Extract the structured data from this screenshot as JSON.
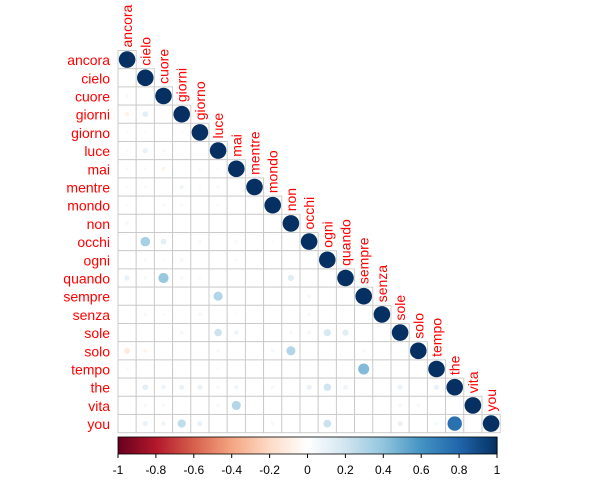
{
  "chart_data": {
    "type": "heatmap",
    "subtype": "correlation-lower-triangle-circles",
    "variables": [
      "ancora",
      "cielo",
      "cuore",
      "giorni",
      "giorno",
      "luce",
      "mai",
      "mentre",
      "mondo",
      "non",
      "occhi",
      "ogni",
      "quando",
      "sempre",
      "senza",
      "sole",
      "solo",
      "tempo",
      "the",
      "vita",
      "you"
    ],
    "label_color": "#ff0000",
    "diagonal_value": 1,
    "offdiagonal": [
      {
        "row": "cuore",
        "col": "ancora",
        "value": 0.05
      },
      {
        "row": "giorni",
        "col": "ancora",
        "value": -0.07
      },
      {
        "row": "giorni",
        "col": "cielo",
        "value": 0.12
      },
      {
        "row": "giorno",
        "col": "ancora",
        "value": 0.03
      },
      {
        "row": "giorno",
        "col": "cielo",
        "value": 0.03
      },
      {
        "row": "giorno",
        "col": "giorni",
        "value": 0.03
      },
      {
        "row": "luce",
        "col": "ancora",
        "value": 0.03
      },
      {
        "row": "luce",
        "col": "cielo",
        "value": 0.1
      },
      {
        "row": "luce",
        "col": "cuore",
        "value": 0.04
      },
      {
        "row": "mai",
        "col": "ancora",
        "value": 0.04
      },
      {
        "row": "mai",
        "col": "cielo",
        "value": 0.04
      },
      {
        "row": "mai",
        "col": "cuore",
        "value": -0.06
      },
      {
        "row": "mai",
        "col": "giorno",
        "value": 0.03
      },
      {
        "row": "mai",
        "col": "luce",
        "value": -0.04
      },
      {
        "row": "mentre",
        "col": "ancora",
        "value": 0.03
      },
      {
        "row": "mentre",
        "col": "cielo",
        "value": 0.03
      },
      {
        "row": "mentre",
        "col": "giorni",
        "value": 0.07
      },
      {
        "row": "mentre",
        "col": "giorno",
        "value": 0.03
      },
      {
        "row": "mentre",
        "col": "luce",
        "value": 0.05
      },
      {
        "row": "mondo",
        "col": "ancora",
        "value": 0.03
      },
      {
        "row": "mondo",
        "col": "cuore",
        "value": -0.04
      },
      {
        "row": "mondo",
        "col": "giorni",
        "value": 0.04
      },
      {
        "row": "mondo",
        "col": "luce",
        "value": 0.03
      },
      {
        "row": "non",
        "col": "ancora",
        "value": 0.05
      },
      {
        "row": "occhi",
        "col": "cielo",
        "value": 0.33
      },
      {
        "row": "occhi",
        "col": "cuore",
        "value": 0.12
      },
      {
        "row": "occhi",
        "col": "giorno",
        "value": 0.05
      },
      {
        "row": "occhi",
        "col": "mai",
        "value": 0.04
      },
      {
        "row": "occhi",
        "col": "mondo",
        "value": 0.03
      },
      {
        "row": "ogni",
        "col": "cielo",
        "value": 0.04
      },
      {
        "row": "ogni",
        "col": "cuore",
        "value": 0.03
      },
      {
        "row": "ogni",
        "col": "giorni",
        "value": 0.05
      },
      {
        "row": "ogni",
        "col": "mai",
        "value": 0.04
      },
      {
        "row": "quando",
        "col": "ancora",
        "value": 0.1
      },
      {
        "row": "quando",
        "col": "cielo",
        "value": 0.05
      },
      {
        "row": "quando",
        "col": "cuore",
        "value": 0.38
      },
      {
        "row": "quando",
        "col": "giorni",
        "value": 0.05
      },
      {
        "row": "quando",
        "col": "giorno",
        "value": 0.03
      },
      {
        "row": "quando",
        "col": "non",
        "value": 0.14
      },
      {
        "row": "sempre",
        "col": "luce",
        "value": 0.3
      },
      {
        "row": "sempre",
        "col": "occhi",
        "value": 0.05
      },
      {
        "row": "senza",
        "col": "cielo",
        "value": 0.05
      },
      {
        "row": "senza",
        "col": "cuore",
        "value": 0.03
      },
      {
        "row": "senza",
        "col": "giorno",
        "value": 0.05
      },
      {
        "row": "senza",
        "col": "mai",
        "value": 0.03
      },
      {
        "row": "senza",
        "col": "occhi",
        "value": 0.05
      },
      {
        "row": "sole",
        "col": "giorni",
        "value": 0.05
      },
      {
        "row": "sole",
        "col": "luce",
        "value": 0.21
      },
      {
        "row": "sole",
        "col": "mai",
        "value": 0.08
      },
      {
        "row": "sole",
        "col": "non",
        "value": 0.05
      },
      {
        "row": "sole",
        "col": "occhi",
        "value": 0.06
      },
      {
        "row": "sole",
        "col": "ogni",
        "value": 0.18
      },
      {
        "row": "sole",
        "col": "quando",
        "value": 0.14
      },
      {
        "row": "solo",
        "col": "ancora",
        "value": -0.12
      },
      {
        "row": "solo",
        "col": "cielo",
        "value": -0.06
      },
      {
        "row": "solo",
        "col": "luce",
        "value": 0.05
      },
      {
        "row": "solo",
        "col": "mondo",
        "value": 0.05
      },
      {
        "row": "solo",
        "col": "non",
        "value": 0.3
      },
      {
        "row": "solo",
        "col": "sempre",
        "value": 0.05
      },
      {
        "row": "tempo",
        "col": "ancora",
        "value": -0.04
      },
      {
        "row": "tempo",
        "col": "luce",
        "value": -0.04
      },
      {
        "row": "tempo",
        "col": "sempre",
        "value": 0.44
      },
      {
        "row": "the",
        "col": "cielo",
        "value": 0.12
      },
      {
        "row": "the",
        "col": "cuore",
        "value": 0.08
      },
      {
        "row": "the",
        "col": "giorni",
        "value": 0.1
      },
      {
        "row": "the",
        "col": "giorno",
        "value": 0.1
      },
      {
        "row": "the",
        "col": "luce",
        "value": 0.05
      },
      {
        "row": "the",
        "col": "mai",
        "value": 0.07
      },
      {
        "row": "the",
        "col": "mondo",
        "value": 0.05
      },
      {
        "row": "the",
        "col": "occhi",
        "value": 0.1
      },
      {
        "row": "the",
        "col": "ogni",
        "value": 0.2
      },
      {
        "row": "the",
        "col": "quando",
        "value": 0.08
      },
      {
        "row": "the",
        "col": "sole",
        "value": 0.1
      },
      {
        "row": "the",
        "col": "tempo",
        "value": 0.1
      },
      {
        "row": "vita",
        "col": "cielo",
        "value": 0.05
      },
      {
        "row": "vita",
        "col": "cuore",
        "value": 0.05
      },
      {
        "row": "vita",
        "col": "luce",
        "value": 0.05
      },
      {
        "row": "vita",
        "col": "mai",
        "value": 0.3
      },
      {
        "row": "vita",
        "col": "sole",
        "value": 0.05
      },
      {
        "row": "vita",
        "col": "solo",
        "value": 0.05
      },
      {
        "row": "you",
        "col": "cielo",
        "value": 0.1
      },
      {
        "row": "you",
        "col": "cuore",
        "value": 0.08
      },
      {
        "row": "you",
        "col": "giorni",
        "value": 0.25
      },
      {
        "row": "you",
        "col": "giorno",
        "value": 0.1
      },
      {
        "row": "you",
        "col": "mondo",
        "value": 0.05
      },
      {
        "row": "you",
        "col": "ogni",
        "value": 0.22
      },
      {
        "row": "you",
        "col": "sole",
        "value": 0.1
      },
      {
        "row": "you",
        "col": "tempo",
        "value": 0.05
      },
      {
        "row": "you",
        "col": "the",
        "value": 0.75
      }
    ],
    "colorbar": {
      "range": [
        -1,
        1
      ],
      "ticks": [
        -1,
        -0.8,
        -0.6,
        -0.4,
        -0.2,
        0,
        0.2,
        0.4,
        0.6,
        0.8,
        1
      ],
      "tick_labels": [
        "-1",
        "-0.8",
        "-0.6",
        "-0.4",
        "-0.2",
        "0",
        "0.2",
        "0.4",
        "0.6",
        "0.8",
        "1"
      ],
      "colors": [
        "#67001F",
        "#B2182B",
        "#D6604D",
        "#F4A582",
        "#FDDBC7",
        "#FFFFFF",
        "#D1E5F0",
        "#92C5DE",
        "#4393C3",
        "#2166AC",
        "#053061"
      ]
    },
    "grid": true
  }
}
